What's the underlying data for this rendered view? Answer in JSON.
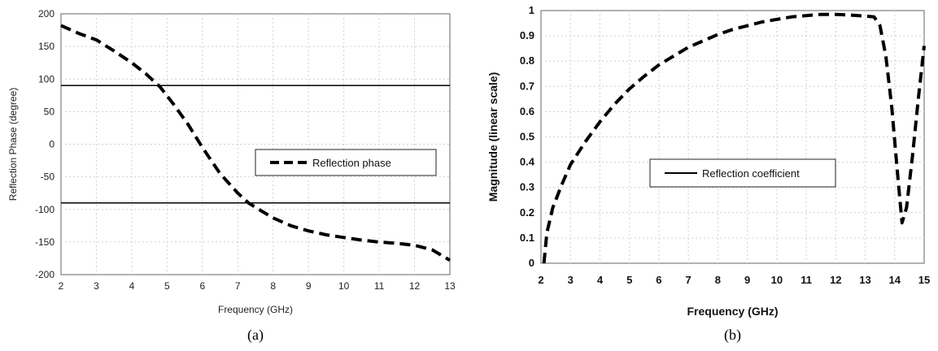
{
  "chart_data": [
    {
      "panel_label": "(a)",
      "type": "line",
      "title": "",
      "xlabel": "Frequency (GHz)",
      "ylabel": "Reflection Phase (degree)",
      "xlim": [
        2,
        13
      ],
      "ylim": [
        -200,
        200
      ],
      "xticks": [
        "2",
        "3",
        "4",
        "5",
        "6",
        "7",
        "8",
        "9",
        "10",
        "11",
        "12",
        "13"
      ],
      "yticks": [
        "200",
        "150",
        "100",
        "50",
        "0",
        "-50",
        "-100",
        "-150",
        "-200"
      ],
      "grid": true,
      "legend": "right-middle",
      "reference_lines_y": [
        90,
        -90
      ],
      "series": [
        {
          "name": "Reflection phase",
          "style": "dashed",
          "x": [
            2,
            2.5,
            3,
            3.5,
            4,
            4.4,
            4.8,
            5.2,
            5.6,
            6,
            6.5,
            7,
            7.3,
            7.6,
            8,
            8.5,
            9,
            9.5,
            10,
            10.5,
            11,
            11.5,
            12,
            12.5,
            13
          ],
          "y": [
            182,
            170,
            160,
            143,
            125,
            108,
            88,
            60,
            30,
            -5,
            -45,
            -75,
            -90,
            -100,
            -113,
            -125,
            -133,
            -139,
            -143,
            -147,
            -150,
            -152,
            -155,
            -162,
            -178
          ]
        }
      ]
    },
    {
      "panel_label": "(b)",
      "type": "line",
      "title": "",
      "xlabel": "Frequency (GHz)",
      "ylabel": "Magnitude (linear scale)",
      "xlim": [
        2,
        15
      ],
      "ylim": [
        0,
        1
      ],
      "xticks": [
        "2",
        "3",
        "4",
        "5",
        "6",
        "7",
        "8",
        "9",
        "10",
        "11",
        "12",
        "13",
        "14",
        "15"
      ],
      "yticks": [
        "1",
        "0.9",
        "0.8",
        "0.7",
        "0.6",
        "0.5",
        "0.4",
        "0.3",
        "0.2",
        "0.1",
        "0"
      ],
      "grid": true,
      "legend": "left-middle",
      "legend_style": "solid",
      "series": [
        {
          "name": "Reflection coefficient",
          "style": "dashed",
          "x": [
            2.1,
            2.2,
            2.4,
            2.7,
            3,
            3.5,
            4,
            4.5,
            5,
            5.5,
            6,
            6.5,
            7,
            7.5,
            8,
            8.5,
            9,
            9.5,
            10,
            10.5,
            11,
            11.5,
            12,
            12.5,
            13,
            13.3,
            13.5,
            13.7,
            13.9,
            14.1,
            14.25,
            14.4,
            14.6,
            14.8,
            15
          ],
          "y": [
            0.0,
            0.12,
            0.22,
            0.31,
            0.39,
            0.48,
            0.56,
            0.63,
            0.69,
            0.74,
            0.785,
            0.82,
            0.855,
            0.88,
            0.905,
            0.925,
            0.94,
            0.955,
            0.965,
            0.975,
            0.98,
            0.985,
            0.985,
            0.982,
            0.978,
            0.975,
            0.94,
            0.82,
            0.62,
            0.35,
            0.16,
            0.22,
            0.42,
            0.65,
            0.86
          ]
        }
      ]
    }
  ]
}
